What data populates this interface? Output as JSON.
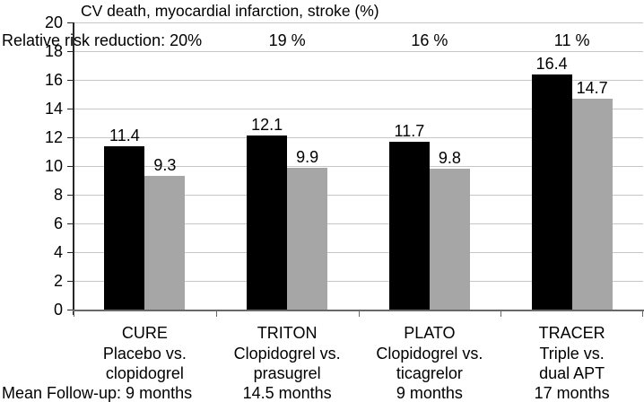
{
  "title": "CV death, myocardial infarction, stroke (%)",
  "chart_data": {
    "type": "bar",
    "title": "CV death, myocardial infarction, stroke (%)",
    "categories": [
      "CURE",
      "TRITON",
      "PLATO",
      "TRACER"
    ],
    "category_sublabels": [
      [
        "Placebo vs.",
        "clopidogrel"
      ],
      [
        "Clopidogrel vs.",
        "prasugrel"
      ],
      [
        "Clopidogrel vs.",
        "ticagrelor"
      ],
      [
        "Triple vs.",
        "dual APT"
      ]
    ],
    "followup_labels": [
      "Mean Follow-up: 9 months",
      "14.5 months",
      "9 months",
      "17 months"
    ],
    "series": [
      {
        "name": "black",
        "color": "#000000",
        "values": [
          11.4,
          12.1,
          11.7,
          16.4
        ]
      },
      {
        "name": "gray",
        "color": "#a6a6a6",
        "values": [
          9.3,
          9.9,
          9.8,
          14.7
        ]
      }
    ],
    "value_labels": [
      [
        "11.4",
        "12.1",
        "11.7",
        "16.4"
      ],
      [
        "9.3",
        "9.9",
        "9.8",
        "14.7"
      ]
    ],
    "risk_reduction": {
      "intro": "Relative risk reduction: 20%",
      "labels": [
        "19 %",
        "16 %",
        "11 %"
      ]
    },
    "yticks": [
      "0",
      "2",
      "4",
      "6",
      "8",
      "10",
      "12",
      "14",
      "16",
      "18",
      "20"
    ],
    "ylim": [
      0,
      20
    ],
    "ytick_step": 2,
    "grid": true,
    "legend": "none",
    "xlabel": "",
    "ylabel": ""
  },
  "colors": {
    "bar_black": "#000000",
    "bar_gray": "#a6a6a6",
    "gridline": "#c7c7c7",
    "y_axis": "#262626",
    "x_axis": "#686868",
    "text": "#000000",
    "background": "#ffffff"
  }
}
